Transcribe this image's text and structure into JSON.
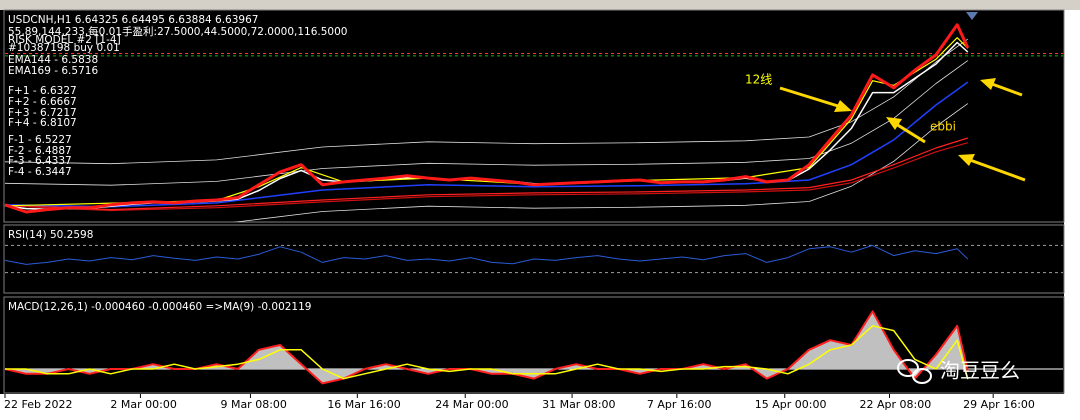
{
  "chart_data": [
    {
      "type": "line",
      "title": "USDCNH,H1 6.64325 6.64495 6.63884 6.63967",
      "info": [
        "55,89,144,233,每0.01手盈利:27.5000,44.5000,72.0000,116.5000",
        "RISK MODEL #2 [1-4]",
        "#10387198 buy 0.01"
      ],
      "labels": [
        "EMA144 - 6.5838",
        "EMA169 - 6.5716",
        "F+1 - 6.6327",
        "F+2 - 6.6667",
        "F+3 - 6.7217",
        "F+4 - 6.8107",
        "F-1 - 6.5227",
        "F-2 - 6.4887",
        "F-3 - 6.4337",
        "F-4 - 6.3447"
      ],
      "annotations": [
        "12线",
        "ebbi"
      ],
      "xlim": [
        0,
        100
      ],
      "ylim": [
        6.284,
        6.728
      ],
      "x": [
        0,
        2,
        4,
        6,
        8,
        10,
        12,
        14,
        16,
        18,
        20,
        22,
        24,
        26,
        28,
        30,
        32,
        34,
        36,
        38,
        40,
        42,
        44,
        46,
        48,
        50,
        52,
        54,
        56,
        58,
        60,
        62,
        64,
        66,
        68,
        70,
        72,
        74,
        76,
        78,
        80,
        82,
        84,
        86,
        88,
        90,
        91
      ],
      "levels": [
        {
          "value": 6.637,
          "color": "#ff3030"
        },
        {
          "value": 6.632,
          "color": "#00c000"
        }
      ],
      "series": [
        {
          "color": "#e0e0e0",
          "width": 0.8,
          "x": [
            0,
            10,
            20,
            30,
            40,
            50,
            60,
            70,
            76,
            80,
            84,
            88,
            91
          ],
          "values": [
            6.41,
            6.406,
            6.414,
            6.441,
            6.452,
            6.448,
            6.45,
            6.454,
            6.462,
            6.494,
            6.546,
            6.619,
            6.667
          ]
        },
        {
          "color": "#e0e0e0",
          "width": 0.8,
          "x": [
            0,
            10,
            20,
            30,
            40,
            50,
            60,
            70,
            76,
            80,
            84,
            88,
            91
          ],
          "values": [
            6.365,
            6.361,
            6.369,
            6.396,
            6.407,
            6.403,
            6.405,
            6.409,
            6.417,
            6.449,
            6.501,
            6.574,
            6.622
          ]
        },
        {
          "color": "#e0e0e0",
          "width": 0.8,
          "x": [
            0,
            10,
            20,
            30,
            40,
            50,
            60,
            70,
            76,
            80,
            84,
            88,
            91
          ],
          "values": [
            6.275,
            6.271,
            6.279,
            6.306,
            6.317,
            6.313,
            6.315,
            6.319,
            6.327,
            6.359,
            6.411,
            6.484,
            6.532
          ]
        },
        {
          "color": "#d01010",
          "width": 1.2,
          "x": [
            0,
            10,
            20,
            30,
            40,
            50,
            60,
            70,
            76,
            80,
            84,
            88,
            91
          ],
          "values": [
            6.318,
            6.308,
            6.314,
            6.326,
            6.337,
            6.341,
            6.343,
            6.347,
            6.351,
            6.366,
            6.397,
            6.431,
            6.45
          ]
        },
        {
          "color": "#ff2020",
          "width": 1.2,
          "x": [
            0,
            10,
            20,
            30,
            40,
            50,
            60,
            70,
            76,
            80,
            84,
            88,
            91
          ],
          "values": [
            6.32,
            6.31,
            6.318,
            6.33,
            6.341,
            6.345,
            6.347,
            6.351,
            6.356,
            6.372,
            6.404,
            6.439,
            6.46
          ]
        },
        {
          "color": "#2040ff",
          "width": 1.5,
          "x": [
            0,
            10,
            20,
            30,
            40,
            50,
            60,
            70,
            76,
            80,
            84,
            88,
            91
          ],
          "values": [
            6.32,
            6.316,
            6.324,
            6.351,
            6.362,
            6.358,
            6.36,
            6.364,
            6.372,
            6.404,
            6.456,
            6.529,
            6.577
          ]
        },
        {
          "color": "#ffffff",
          "width": 1.5,
          "values": [
            6.318,
            6.312,
            6.311,
            6.312,
            6.313,
            6.317,
            6.321,
            6.324,
            6.324,
            6.326,
            6.328,
            6.332,
            6.35,
            6.375,
            6.392,
            6.372,
            6.368,
            6.37,
            6.373,
            6.377,
            6.376,
            6.373,
            6.375,
            6.372,
            6.369,
            6.364,
            6.364,
            6.365,
            6.367,
            6.369,
            6.371,
            6.367,
            6.368,
            6.368,
            6.371,
            6.376,
            6.369,
            6.371,
            6.395,
            6.435,
            6.48,
            6.555,
            6.555,
            6.585,
            6.615,
            6.66,
            6.64
          ]
        },
        {
          "color": "#ffff00",
          "width": 1.2,
          "x": [
            0,
            20,
            24,
            28,
            32,
            40,
            50,
            60,
            70,
            76,
            80,
            82,
            84,
            86,
            88,
            90,
            91
          ],
          "values": [
            6.318,
            6.329,
            6.358,
            6.398,
            6.368,
            6.376,
            6.363,
            6.371,
            6.377,
            6.398,
            6.5,
            6.58,
            6.57,
            6.598,
            6.625,
            6.67,
            6.648
          ]
        },
        {
          "color": "#ff1a1a",
          "width": 3,
          "values": [
            6.32,
            6.305,
            6.31,
            6.314,
            6.314,
            6.32,
            6.324,
            6.326,
            6.324,
            6.328,
            6.33,
            6.335,
            6.362,
            6.389,
            6.404,
            6.362,
            6.368,
            6.372,
            6.376,
            6.381,
            6.376,
            6.372,
            6.376,
            6.372,
            6.368,
            6.362,
            6.364,
            6.366,
            6.368,
            6.37,
            6.372,
            6.366,
            6.368,
            6.368,
            6.372,
            6.379,
            6.368,
            6.372,
            6.404,
            6.456,
            6.508,
            6.592,
            6.565,
            6.602,
            6.634,
            6.697,
            6.649
          ]
        }
      ]
    },
    {
      "type": "line",
      "title": "RSI(14) 50.2598",
      "xlim": [
        0,
        100
      ],
      "ylim": [
        0,
        100
      ],
      "x": [
        0,
        2,
        4,
        6,
        8,
        10,
        12,
        14,
        16,
        18,
        20,
        22,
        24,
        26,
        28,
        30,
        32,
        34,
        36,
        38,
        40,
        42,
        44,
        46,
        48,
        50,
        52,
        54,
        56,
        58,
        60,
        62,
        64,
        66,
        68,
        70,
        72,
        74,
        76,
        78,
        80,
        82,
        84,
        86,
        88,
        90,
        91
      ],
      "levels": [
        {
          "value": 70,
          "color": "#a0a0a0"
        },
        {
          "value": 30,
          "color": "#a0a0a0"
        }
      ],
      "series": [
        {
          "color": "#2a5cd8",
          "width": 1,
          "values": [
            48,
            42,
            45,
            50,
            47,
            52,
            49,
            55,
            51,
            48,
            53,
            50,
            57,
            68,
            60,
            45,
            52,
            50,
            55,
            48,
            50,
            47,
            52,
            45,
            43,
            50,
            48,
            52,
            55,
            50,
            47,
            50,
            53,
            49,
            55,
            58,
            45,
            52,
            65,
            68,
            60,
            70,
            55,
            62,
            58,
            65,
            50
          ]
        }
      ]
    },
    {
      "type": "line",
      "title": "MACD(12,26,1) -0.000460 -0.000460  =>MA(9) -0.002119",
      "xlim": [
        0,
        100
      ],
      "ylim": [
        -0.005,
        0.015
      ],
      "xticks": [
        {
          "value": 0,
          "label": "22 Feb 2022"
        },
        {
          "value": 12.8,
          "label": "2 Mar 00:00"
        },
        {
          "value": 23.2,
          "label": "9 Mar 08:00"
        },
        {
          "value": 33.3,
          "label": "16 Mar 16:00"
        },
        {
          "value": 43.5,
          "label": "24 Mar 00:00"
        },
        {
          "value": 53.6,
          "label": "31 Mar 08:00"
        },
        {
          "value": 63.5,
          "label": "7 Apr 16:00"
        },
        {
          "value": 73.7,
          "label": "15 Apr 00:00"
        },
        {
          "value": 83.6,
          "label": "22 Apr 08:00"
        },
        {
          "value": 93.4,
          "label": "29 Apr 16:00"
        }
      ],
      "x": [
        0,
        2,
        4,
        6,
        8,
        10,
        12,
        14,
        16,
        18,
        20,
        22,
        24,
        26,
        28,
        30,
        32,
        34,
        36,
        38,
        40,
        42,
        44,
        46,
        48,
        50,
        52,
        54,
        56,
        58,
        60,
        62,
        64,
        66,
        68,
        70,
        72,
        74,
        76,
        78,
        80,
        82,
        84,
        86,
        88,
        90,
        91
      ],
      "levels": [
        {
          "value": 0,
          "color": "#ffffff"
        }
      ],
      "series": [
        {
          "color": "#ff2020",
          "width": 2,
          "area": "#c0c0c0",
          "values": [
            0,
            -0.001,
            -0.001,
            0,
            -0.001,
            0,
            0,
            0.001,
            0,
            0,
            0.001,
            0,
            0.004,
            0.005,
            0.001,
            -0.003,
            -0.002,
            0,
            0.001,
            0,
            -0.001,
            0,
            0,
            -0.001,
            -0.001,
            -0.002,
            0,
            0.001,
            0,
            0,
            -0.001,
            0,
            0,
            0.001,
            0,
            0.001,
            -0.002,
            0,
            0.004,
            0.006,
            0.005,
            0.012,
            0.004,
            -0.002,
            0.003,
            0.009,
            -0.00046
          ]
        },
        {
          "color": "#ffff00",
          "width": 1.5,
          "values": [
            0,
            0,
            -0.001,
            -0.001,
            0,
            -0.001,
            0,
            0,
            0.001,
            0,
            0.0005,
            0.001,
            0.002,
            0.004,
            0.004,
            0,
            -0.002,
            -0.001,
            0,
            0.001,
            0,
            -0.0005,
            0,
            0,
            -0.001,
            -0.001,
            -0.001,
            0,
            0.001,
            0,
            0,
            -0.0005,
            0,
            0,
            0.0005,
            0.0005,
            0,
            -0.001,
            0.001,
            0.004,
            0.005,
            0.009,
            0.008,
            0.002,
            0,
            0.006,
            -0.002119
          ]
        }
      ]
    }
  ],
  "watermark": "淘豆豆么"
}
